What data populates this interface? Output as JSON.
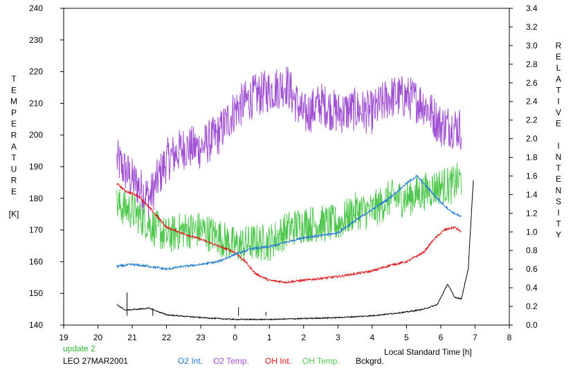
{
  "chart_data": {
    "type": "line",
    "xlabel": "Local Standard Time [h]",
    "ylabel_left": [
      "T",
      "E",
      "M",
      "P",
      "E",
      "R",
      "A",
      "T",
      "U",
      "R",
      "E",
      "",
      "[K]"
    ],
    "ylabel_right": [
      "R",
      "E",
      "L",
      "A",
      "T",
      "I",
      "V",
      "E",
      "",
      "I",
      "N",
      "T",
      "E",
      "N",
      "S",
      "I",
      "T",
      "Y"
    ],
    "x_ticks": [
      {
        "t": 19,
        "label": "19"
      },
      {
        "t": 20,
        "label": "20"
      },
      {
        "t": 21,
        "label": "21"
      },
      {
        "t": 22,
        "label": "22"
      },
      {
        "t": 23,
        "label": "23"
      },
      {
        "t": 24,
        "label": "0"
      },
      {
        "t": 25,
        "label": "1"
      },
      {
        "t": 26,
        "label": "2"
      },
      {
        "t": 27,
        "label": "3"
      },
      {
        "t": 28,
        "label": "4"
      },
      {
        "t": 29,
        "label": "5"
      },
      {
        "t": 30,
        "label": "6"
      },
      {
        "t": 31,
        "label": "7"
      },
      {
        "t": 32,
        "label": "8"
      }
    ],
    "xlim": [
      19,
      32
    ],
    "ylim_left": [
      140,
      240
    ],
    "ylim_right": [
      0.0,
      3.4
    ],
    "left_ticks": [
      "140",
      "150",
      "160",
      "170",
      "180",
      "190",
      "200",
      "210",
      "220",
      "230",
      "240"
    ],
    "right_ticks": [
      "0.0",
      "0.2",
      "0.4",
      "0.6",
      "0.8",
      "1.0",
      "1.2",
      "1.4",
      "1.6",
      "1.8",
      "2.0",
      "2.2",
      "2.4",
      "2.6",
      "2.8",
      "3.0",
      "3.2",
      "3.4"
    ],
    "grid": false,
    "annotations": {
      "update": "update 2",
      "station": "LEO 27MAR2001"
    },
    "legend": [
      {
        "label": "O2 Int.",
        "color": "#1e78d2"
      },
      {
        "label": "O2 Temp.",
        "color": "#a050d2"
      },
      {
        "label": "OH Int.",
        "color": "#dc1414"
      },
      {
        "label": "OH Temp.",
        "color": "#50c850"
      },
      {
        "label": "Bckgrd.",
        "color": "#000000"
      }
    ],
    "series": [
      {
        "name": "O2 Temp.",
        "axis": "left",
        "color": "#a050d2",
        "noise": 7,
        "x": [
          20.55,
          21.0,
          21.5,
          22.0,
          22.5,
          23.0,
          23.5,
          24.0,
          24.5,
          25.0,
          25.5,
          26.0,
          26.5,
          27.0,
          27.5,
          28.0,
          28.5,
          29.0,
          29.5,
          30.0,
          30.3,
          30.6
        ],
        "y": [
          192,
          186,
          180,
          192,
          196,
          196,
          200,
          208,
          212,
          214,
          216,
          206,
          210,
          207,
          208,
          207,
          212,
          212,
          210,
          203,
          203,
          202
        ]
      },
      {
        "name": "OH Temp.",
        "axis": "left",
        "color": "#50c850",
        "noise": 6,
        "x": [
          20.55,
          21.0,
          21.5,
          22.0,
          22.5,
          23.0,
          23.5,
          24.0,
          24.5,
          25.0,
          25.5,
          26.0,
          26.5,
          27.0,
          27.5,
          28.0,
          28.5,
          29.0,
          29.5,
          30.0,
          30.3,
          30.6
        ],
        "y": [
          178,
          176,
          172,
          168,
          170,
          170,
          168,
          165,
          166,
          166,
          170,
          172,
          172,
          172,
          176,
          176,
          180,
          180,
          182,
          184,
          184,
          186
        ]
      },
      {
        "name": "OH Int.",
        "axis": "right",
        "color": "#dc1414",
        "noise": 0.012,
        "x": [
          20.55,
          20.8,
          21.2,
          21.6,
          22.0,
          22.5,
          23.0,
          23.5,
          24.0,
          24.3,
          24.6,
          25.0,
          25.5,
          26.0,
          26.5,
          27.0,
          27.5,
          28.0,
          28.5,
          29.0,
          29.5,
          29.8,
          30.1,
          30.4,
          30.6
        ],
        "y": [
          1.52,
          1.44,
          1.38,
          1.22,
          1.05,
          0.98,
          0.92,
          0.85,
          0.78,
          0.68,
          0.55,
          0.48,
          0.46,
          0.48,
          0.5,
          0.52,
          0.55,
          0.58,
          0.64,
          0.68,
          0.78,
          0.92,
          1.02,
          1.05,
          1.0
        ]
      },
      {
        "name": "O2 Int.",
        "axis": "right",
        "color": "#1e78d2",
        "noise": 0.012,
        "x": [
          20.55,
          21.0,
          21.5,
          22.0,
          22.5,
          23.0,
          23.5,
          24.0,
          24.5,
          25.0,
          25.5,
          26.0,
          26.5,
          27.0,
          27.5,
          28.0,
          28.5,
          29.0,
          29.3,
          29.6,
          30.0,
          30.3,
          30.6
        ],
        "y": [
          0.63,
          0.65,
          0.63,
          0.6,
          0.63,
          0.65,
          0.68,
          0.76,
          0.82,
          0.84,
          0.89,
          0.94,
          0.96,
          0.99,
          1.12,
          1.24,
          1.36,
          1.52,
          1.6,
          1.48,
          1.32,
          1.22,
          1.16
        ]
      },
      {
        "name": "Bckgrd.",
        "axis": "right",
        "color": "#000000",
        "noise": 0.006,
        "x": [
          20.55,
          20.8,
          21.5,
          22.0,
          23.0,
          24.0,
          25.0,
          26.0,
          27.0,
          28.0,
          28.5,
          29.0,
          29.5,
          29.9,
          30.2,
          30.4,
          30.6,
          30.8,
          30.95
        ],
        "y": [
          0.22,
          0.16,
          0.18,
          0.11,
          0.08,
          0.06,
          0.06,
          0.07,
          0.08,
          0.1,
          0.12,
          0.14,
          0.17,
          0.22,
          0.44,
          0.3,
          0.28,
          0.6,
          1.55
        ]
      }
    ],
    "spikes": [
      {
        "x": 20.85,
        "y": 0.35
      },
      {
        "x": 21.6,
        "y": 0.18
      },
      {
        "x": 24.1,
        "y": 0.19
      },
      {
        "x": 24.9,
        "y": 0.14
      }
    ]
  }
}
